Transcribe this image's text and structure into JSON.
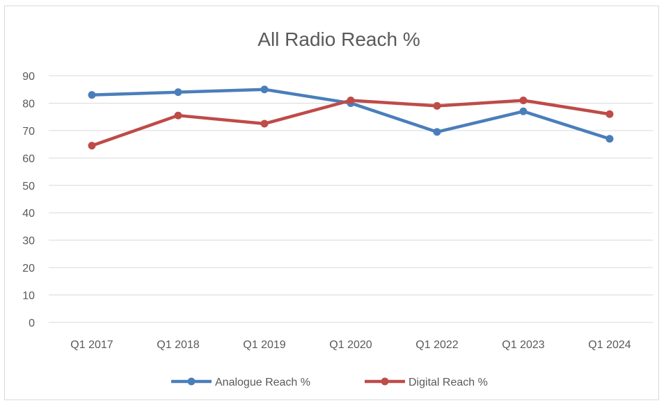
{
  "chart_data": {
    "type": "line",
    "title": "All Radio Reach %",
    "categories": [
      "Q1 2017",
      "Q1 2018",
      "Q1 2019",
      "Q1 2020",
      "Q1 2022",
      "Q1 2023",
      "Q1 2024"
    ],
    "series": [
      {
        "name": "Analogue Reach %",
        "values": [
          83,
          84,
          85,
          80,
          69.5,
          77,
          67
        ],
        "color": "#4a7ebb"
      },
      {
        "name": "Digital Reach %",
        "values": [
          64.5,
          75.5,
          72.5,
          81,
          79,
          81,
          76
        ],
        "color": "#be4b48"
      }
    ],
    "ylim": [
      0,
      90
    ],
    "yticks": [
      "0",
      "10",
      "20",
      "30",
      "40",
      "50",
      "60",
      "70",
      "80",
      "90"
    ],
    "grid": true,
    "legend_position": "bottom"
  }
}
